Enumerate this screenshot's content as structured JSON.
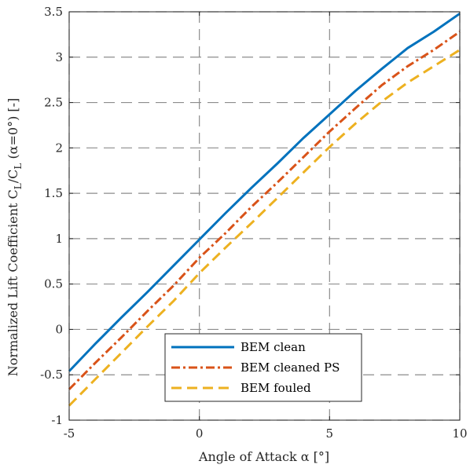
{
  "chart_data": {
    "type": "line",
    "xlabel": "Angle of Attack α [°]",
    "ylabel": "Normalized Lift Coefficient C_L/C_L (α=0°) [-]",
    "ylabel_parts": {
      "prefix": "Normalized Lift Coefficient C",
      "sub1": "L",
      "mid": "/C",
      "sub2": "L",
      "suffix": " (α=0°) [-]"
    },
    "xlim": [
      -5,
      10
    ],
    "ylim": [
      -1,
      3.5
    ],
    "xticks": [
      -5,
      0,
      5,
      10
    ],
    "xtick_labels": [
      "-5",
      "0",
      "5",
      "10"
    ],
    "yticks": [
      -1,
      -0.5,
      0,
      0.5,
      1,
      1.5,
      2,
      2.5,
      3,
      3.5
    ],
    "ytick_labels": [
      "-1",
      "-0.5",
      "0",
      "0.5",
      "1",
      "1.5",
      "2",
      "2.5",
      "3",
      "3.5"
    ],
    "grid": true,
    "legend_position": "bottom-center",
    "series": [
      {
        "name": "BEM clean",
        "color": "#0072BD",
        "style": "solid",
        "x": [
          -5,
          -4,
          -3,
          -2,
          -1,
          0,
          1,
          2,
          3,
          4,
          5,
          6,
          7,
          8,
          9,
          10
        ],
        "y": [
          -0.46,
          -0.16,
          0.13,
          0.41,
          0.7,
          0.99,
          1.28,
          1.56,
          1.83,
          2.11,
          2.37,
          2.63,
          2.87,
          3.1,
          3.28,
          3.48
        ]
      },
      {
        "name": "BEM cleaned PS",
        "color": "#D95319",
        "style": "dashdot",
        "x": [
          -5,
          -4,
          -3,
          -2,
          -1,
          0,
          1,
          2,
          3,
          4,
          5,
          6,
          7,
          8,
          9,
          10
        ],
        "y": [
          -0.66,
          -0.37,
          -0.09,
          0.2,
          0.48,
          0.79,
          1.06,
          1.35,
          1.62,
          1.9,
          2.18,
          2.44,
          2.69,
          2.9,
          3.08,
          3.28
        ]
      },
      {
        "name": "BEM fouled",
        "color": "#EDB120",
        "style": "dashed",
        "x": [
          -5,
          -4,
          -3,
          -2,
          -1,
          0,
          1,
          2,
          3,
          4,
          5,
          6,
          7,
          8,
          9,
          10
        ],
        "y": [
          -0.84,
          -0.55,
          -0.26,
          0.03,
          0.31,
          0.62,
          0.9,
          1.17,
          1.45,
          1.73,
          2.01,
          2.27,
          2.51,
          2.72,
          2.9,
          3.08
        ]
      }
    ]
  }
}
